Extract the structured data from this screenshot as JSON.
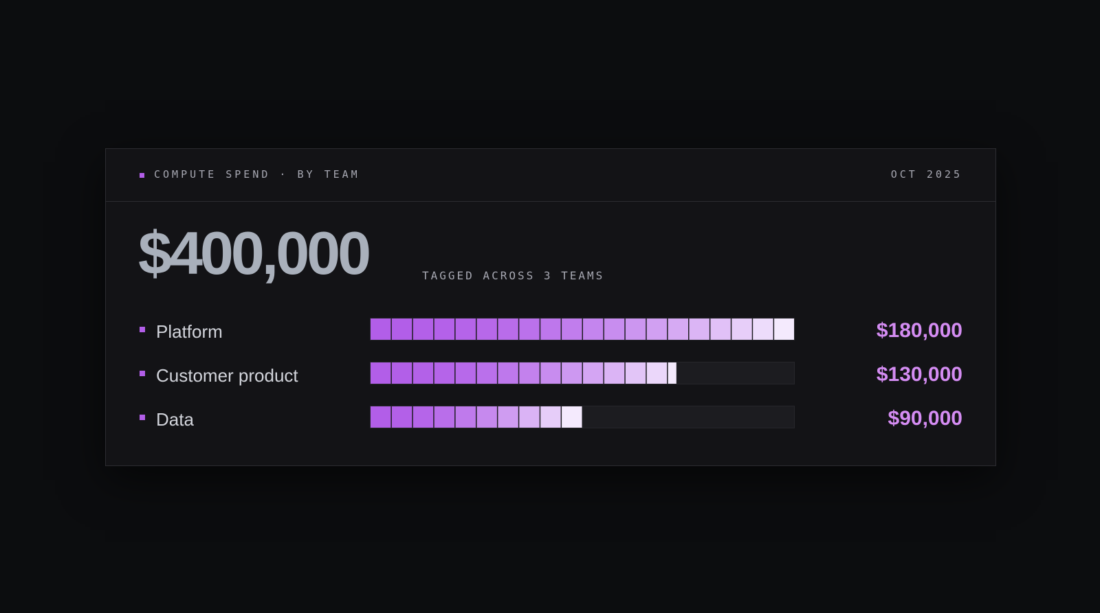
{
  "header": {
    "title": "COMPUTE SPEND · BY TEAM",
    "date": "OCT 2025"
  },
  "summary": {
    "total": "$400,000",
    "caption": "TAGGED ACROSS 3 TEAMS"
  },
  "colors": {
    "accent": "#b25ee8",
    "value_text": "#d48cf2",
    "bar_start": "#b25ee8",
    "bar_end": "#f4eafd",
    "track": "#1c1c20"
  },
  "chart_data": {
    "type": "bar",
    "orientation": "horizontal",
    "title": "COMPUTE SPEND · BY TEAM",
    "categories": [
      "Platform",
      "Customer product",
      "Data"
    ],
    "values": [
      180000,
      130000,
      90000
    ],
    "value_labels": [
      "$180,000",
      "$130,000",
      "$90,000"
    ],
    "xlim": [
      0,
      180000
    ],
    "segment_value": 9000,
    "grid": false,
    "legend": "none"
  }
}
